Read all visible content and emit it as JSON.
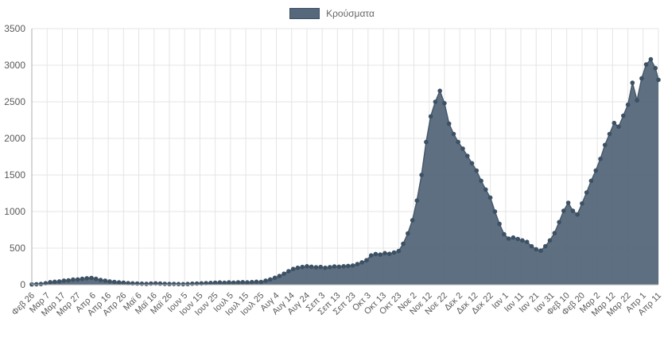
{
  "legend": {
    "label": "Κρούσματα"
  },
  "colors": {
    "area_fill": "#56697c",
    "line": "#46586a",
    "dot": "#3d5164",
    "legend_box_border": "#3a4d60",
    "grid": "#e4e4e4",
    "axis": "#adadad",
    "tick_text": "#595959",
    "legend_text": "#666666",
    "background": "#ffffff"
  },
  "chart_data": {
    "type": "area",
    "title": "",
    "grid": true,
    "legend_position": "top",
    "ylim": [
      0,
      3500
    ],
    "y_ticks": [
      0,
      500,
      1000,
      1500,
      2000,
      2500,
      3000,
      3500
    ],
    "x_tick_interval_days": 10,
    "x_range_days": [
      0,
      410
    ],
    "x_tick_labels": [
      "Φεβ 26",
      "Μαρ 7",
      "Μαρ 17",
      "Μαρ 27",
      "Απρ 6",
      "Απρ 16",
      "Απρ 26",
      "Μαϊ 6",
      "Μαϊ 16",
      "Μαϊ 26",
      "Ιουν 5",
      "Ιουν 15",
      "Ιουν 25",
      "Ιουλ 5",
      "Ιουλ 15",
      "Ιουλ 25",
      "Αυγ 4",
      "Αυγ 14",
      "Αυγ 24",
      "Σεπ 3",
      "Σεπ 13",
      "Σεπ 23",
      "Οκτ 3",
      "Οκτ 13",
      "Οκτ 23",
      "Νοε 2",
      "Νοε 12",
      "Νοε 22",
      "Δεκ 2",
      "Δεκ 12",
      "Δεκ 22",
      "Ιαν 1",
      "Ιαν 11",
      "Ιαν 21",
      "Ιαν 31",
      "Φεβ 10",
      "Φεβ 20",
      "Μαρ 2",
      "Μαρ 12",
      "Μαρ 22",
      "Απρ 1",
      "Απρ 11"
    ],
    "series": [
      {
        "name": "Κρούσματα",
        "x_days": [
          0,
          3,
          6,
          9,
          12,
          15,
          18,
          21,
          24,
          27,
          30,
          33,
          36,
          39,
          42,
          45,
          48,
          51,
          54,
          57,
          60,
          63,
          66,
          69,
          72,
          75,
          78,
          81,
          84,
          87,
          90,
          93,
          96,
          99,
          102,
          105,
          108,
          111,
          114,
          117,
          120,
          123,
          126,
          129,
          132,
          135,
          138,
          141,
          144,
          147,
          150,
          153,
          156,
          159,
          162,
          165,
          168,
          171,
          174,
          177,
          180,
          183,
          186,
          189,
          192,
          195,
          198,
          201,
          204,
          207,
          210,
          213,
          216,
          219,
          222,
          225,
          228,
          231,
          234,
          237,
          240,
          243,
          246,
          249,
          252,
          255,
          258,
          261,
          264,
          267,
          270,
          273,
          276,
          279,
          282,
          285,
          288,
          291,
          294,
          297,
          300,
          303,
          306,
          309,
          312,
          315,
          318,
          321,
          324,
          327,
          330,
          333,
          336,
          339,
          342,
          345,
          348,
          351,
          354,
          357,
          360,
          363,
          366,
          369,
          372,
          375,
          378,
          381,
          384,
          387,
          390,
          393,
          396,
          399,
          402,
          405,
          408,
          410
        ],
        "values": [
          4,
          7,
          10,
          20,
          35,
          40,
          45,
          55,
          60,
          70,
          72,
          80,
          88,
          92,
          80,
          65,
          55,
          45,
          38,
          32,
          28,
          22,
          18,
          16,
          14,
          12,
          16,
          18,
          15,
          12,
          10,
          11,
          9,
          8,
          10,
          14,
          16,
          19,
          22,
          24,
          27,
          30,
          26,
          31,
          28,
          33,
          35,
          31,
          36,
          40,
          38,
          55,
          72,
          95,
          120,
          150,
          185,
          215,
          232,
          242,
          252,
          246,
          238,
          242,
          232,
          240,
          250,
          246,
          252,
          256,
          262,
          282,
          305,
          335,
          400,
          420,
          412,
          432,
          422,
          440,
          460,
          560,
          700,
          880,
          1150,
          1500,
          1950,
          2300,
          2500,
          2650,
          2480,
          2200,
          2060,
          1950,
          1860,
          1760,
          1660,
          1560,
          1420,
          1300,
          1190,
          1000,
          830,
          690,
          630,
          645,
          625,
          605,
          585,
          525,
          485,
          465,
          525,
          605,
          705,
          855,
          1010,
          1120,
          1010,
          960,
          1110,
          1260,
          1420,
          1560,
          1720,
          1910,
          2060,
          2210,
          2160,
          2310,
          2460,
          2760,
          2520,
          2820,
          3010,
          3080,
          2960,
          2800
        ]
      }
    ]
  }
}
